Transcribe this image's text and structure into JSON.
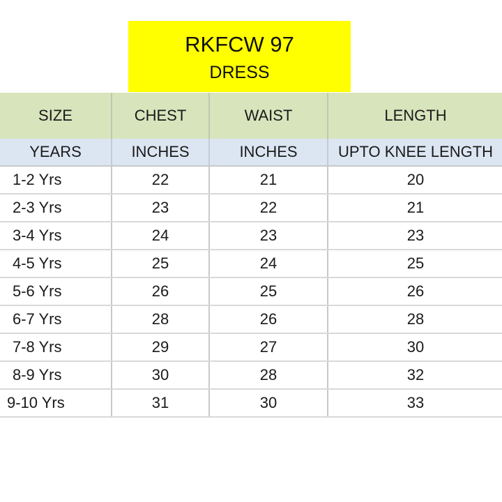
{
  "title": {
    "code": "RKFCW 97",
    "subtitle": "DRESS"
  },
  "colors": {
    "title_background": "#ffff00",
    "header_background": "#d8e4bc",
    "unit_row_background": "#dce6f2",
    "grid_lines": "#c8c8c8"
  },
  "table": {
    "headers": [
      "SIZE",
      "CHEST",
      "WAIST",
      "LENGTH"
    ],
    "units": [
      "YEARS",
      "INCHES",
      "INCHES",
      "UPTO KNEE LENGTH"
    ],
    "rows": [
      [
        "1-2 Yrs",
        "22",
        "21",
        "20"
      ],
      [
        "2-3 Yrs",
        "23",
        "22",
        "21"
      ],
      [
        "3-4 Yrs",
        "24",
        "23",
        "23"
      ],
      [
        "4-5 Yrs",
        "25",
        "24",
        "25"
      ],
      [
        "5-6 Yrs",
        "26",
        "25",
        "26"
      ],
      [
        "6-7 Yrs",
        "28",
        "26",
        "28"
      ],
      [
        "7-8 Yrs",
        "29",
        "27",
        "30"
      ],
      [
        "8-9 Yrs",
        "30",
        "28",
        "32"
      ],
      [
        "9-10 Yrs",
        "31",
        "30",
        "33"
      ]
    ]
  }
}
